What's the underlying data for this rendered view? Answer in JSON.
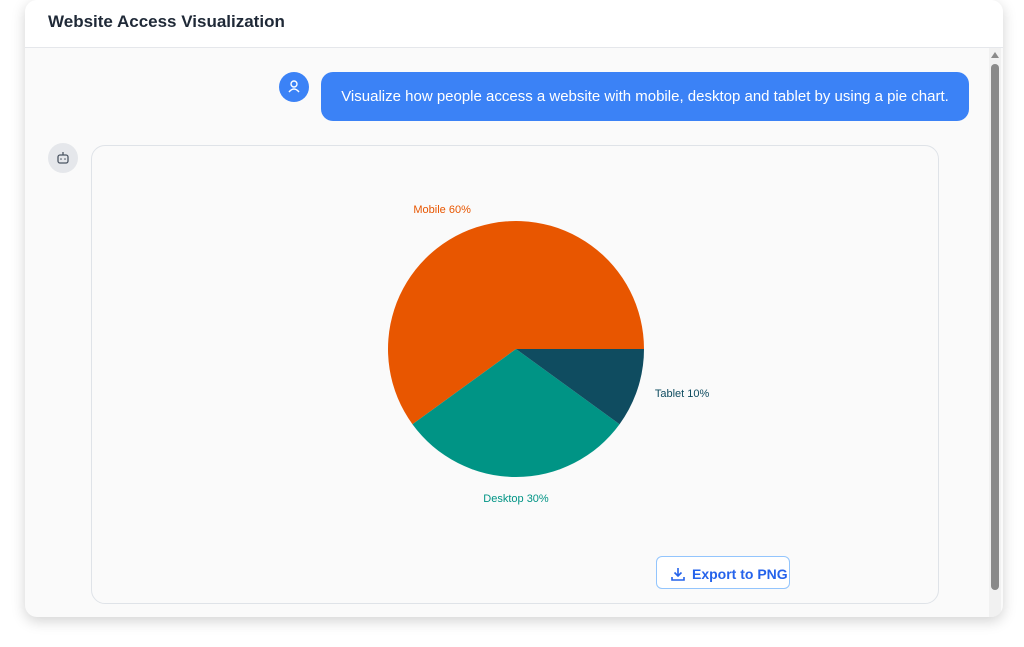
{
  "header": {
    "title": "Website Access Visualization"
  },
  "user_message": {
    "text": "Visualize how people access a website with mobile, desktop and tablet by using a pie chart."
  },
  "chart_data": {
    "type": "pie",
    "categories": [
      "Mobile",
      "Desktop",
      "Tablet"
    ],
    "values": [
      60,
      30,
      10
    ],
    "value_labels": [
      "60%",
      "30%",
      "10%"
    ],
    "colors": [
      "#e85600",
      "#009485",
      "#0f4c60"
    ]
  },
  "export_button": {
    "label": "Export to PNG"
  }
}
